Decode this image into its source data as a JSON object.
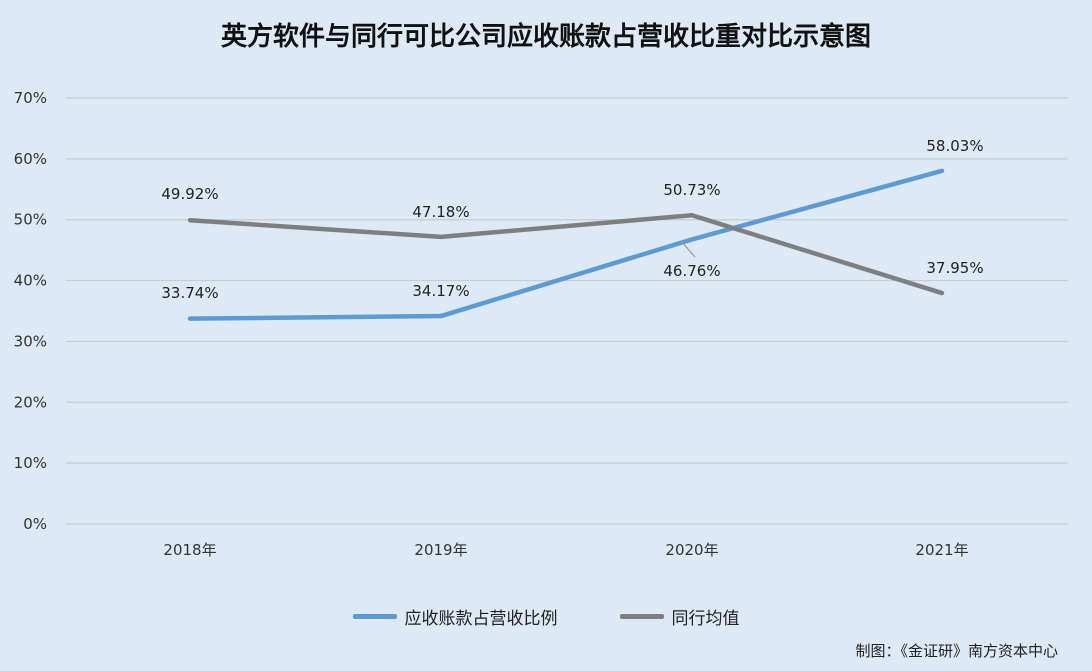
{
  "title": "英方软件与同行可比公司应收账款占营收比重对比示意图",
  "credit": "制图：《金证研》南方资本中心",
  "colors": {
    "background": "#dde9f5",
    "grid": "#c5ccd3",
    "series_a": "#5b9bd5",
    "series_b": "#7f7f7f"
  },
  "chart_data": {
    "type": "line",
    "categories": [
      "2018年",
      "2019年",
      "2020年",
      "2021年"
    ],
    "series": [
      {
        "name": "应收账款占营收比例",
        "values": [
          33.74,
          34.17,
          46.76,
          58.03
        ],
        "labels": [
          "33.74%",
          "34.17%",
          "46.76%",
          "58.03%"
        ],
        "color": "#5b9bd5"
      },
      {
        "name": "同行均值",
        "values": [
          49.92,
          47.18,
          50.73,
          37.95
        ],
        "labels": [
          "49.92%",
          "47.18%",
          "50.73%",
          "37.95%"
        ],
        "color": "#7f7f7f"
      }
    ],
    "yticks": [
      "0%",
      "10%",
      "20%",
      "30%",
      "40%",
      "50%",
      "60%",
      "70%"
    ],
    "ylim": [
      0,
      70
    ],
    "grid": true,
    "legend": "bottom"
  }
}
